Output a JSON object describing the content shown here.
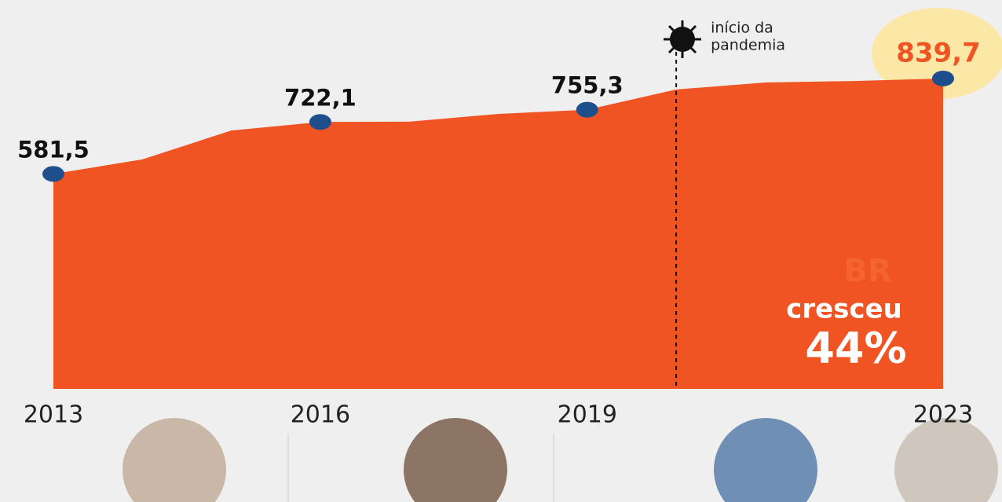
{
  "chart_data": {
    "type": "area",
    "x": [
      2013,
      2014,
      2015,
      2016,
      2017,
      2018,
      2019,
      2020,
      2021,
      2022,
      2023
    ],
    "values": [
      581.5,
      621,
      699,
      722.1,
      723,
      744,
      755.3,
      810,
      829,
      833,
      839.7
    ],
    "value_labels": [
      "581,5",
      null,
      null,
      "722,1",
      null,
      null,
      "755,3",
      null,
      null,
      null,
      "839,7"
    ],
    "color": "#f05423",
    "marker_color": "#1f4e8c",
    "highlight_color": "#f05423",
    "xlim": [
      2013,
      2023
    ],
    "xticks": [
      2013,
      2016,
      2019,
      2023
    ],
    "ylim": [
      0,
      1050
    ],
    "event": {
      "x": 2020,
      "lines": [
        "início da",
        "pandemia"
      ]
    },
    "callout": {
      "region": "BR",
      "text": "cresceu",
      "change": "44%"
    }
  }
}
